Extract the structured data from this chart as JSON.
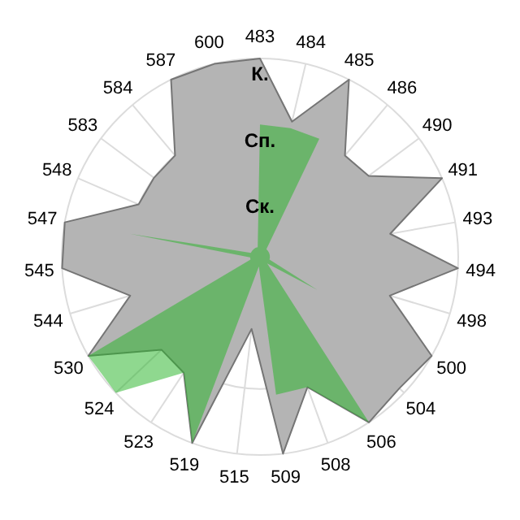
{
  "chart_data": {
    "type": "radar",
    "categories": [
      "483",
      "484",
      "485",
      "486",
      "490",
      "491",
      "493",
      "494",
      "498",
      "500",
      "504",
      "506",
      "508",
      "509",
      "515",
      "519",
      "523",
      "524",
      "530",
      "544",
      "545",
      "547",
      "548",
      "583",
      "584",
      "587",
      "600"
    ],
    "ylim": [
      0,
      3
    ],
    "yticks": [
      {
        "value": 1,
        "label": "Ск."
      },
      {
        "value": 2,
        "label": "Сп."
      },
      {
        "value": 3,
        "label": "К."
      }
    ],
    "grid": true,
    "series": [
      {
        "color": "#b4b4b4",
        "values": [
          3.0,
          2.1,
          3.0,
          2.0,
          2.05,
          3.0,
          2.0,
          3.0,
          2.05,
          3.0,
          2.9,
          3.0,
          2.1,
          3.0,
          1.1,
          3.0,
          2.1,
          2.05,
          3.0,
          2.05,
          3.0,
          3.0,
          2.0,
          2.0,
          2.0,
          3.0,
          3.0
        ]
      },
      {
        "color": "#28b428",
        "values": [
          2.0,
          2.0,
          2.0,
          0.15,
          0.15,
          0.15,
          0.15,
          0.15,
          0.15,
          1.0,
          0.15,
          3.0,
          2.1,
          2.1,
          0.15,
          3.0,
          2.1,
          3.0,
          3.0,
          0.15,
          0.15,
          2.0,
          0.15,
          0.15,
          0.15,
          0.15,
          0.15
        ]
      }
    ]
  }
}
